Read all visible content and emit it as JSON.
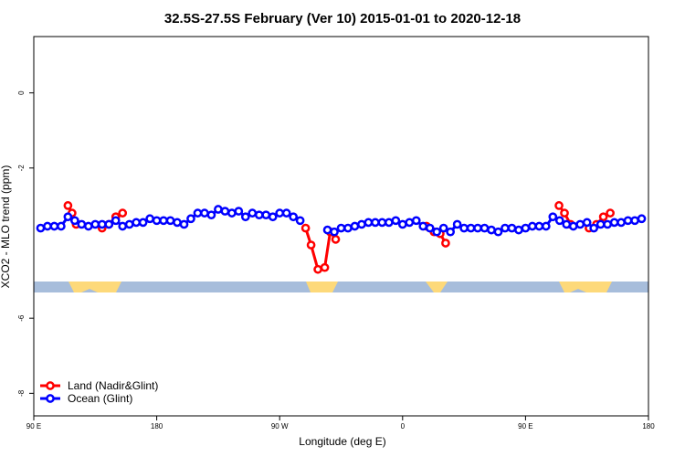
{
  "chart_data": {
    "type": "line",
    "title": "32.5S-27.5S February (Ver 10)   2015-01-01 to 2020-12-18",
    "x_label": "Longitude (deg E)",
    "y_label": "XCO2 - MLO trend (ppm)",
    "xlim": [
      90,
      540
    ],
    "ylim": [
      -8.6,
      1.5
    ],
    "xticks": [
      {
        "value": 90,
        "label": "90 E"
      },
      {
        "value": 180,
        "label": "180"
      },
      {
        "value": 270,
        "label": "90 W"
      },
      {
        "value": 360,
        "label": "0"
      },
      {
        "value": 450,
        "label": "90 E"
      },
      {
        "value": 540,
        "label": "180"
      }
    ],
    "yticks": [
      0,
      -2,
      -6,
      -8
    ],
    "legend": "bottom-left",
    "series": [
      {
        "name": "Land (Nadir&Glint)",
        "color": "#ff0000",
        "x": [
          115,
          118,
          121,
          130,
          140,
          145,
          150,
          155,
          200,
          289,
          293,
          298,
          303,
          307,
          311,
          340,
          377.5,
          383,
          387.5,
          391.5,
          430,
          474.5,
          478.5,
          483,
          490,
          496.5,
          502,
          507,
          512
        ],
        "values": [
          -3.0,
          -3.2,
          -3.5,
          null,
          -3.6,
          -3.5,
          -3.3,
          -3.2,
          null,
          -3.6,
          -4.05,
          -4.7,
          -4.65,
          -3.7,
          -3.9,
          null,
          -3.55,
          -3.7,
          -3.75,
          -4.0,
          null,
          -3.0,
          -3.2,
          -3.5,
          null,
          -3.6,
          -3.5,
          -3.3,
          -3.2
        ]
      },
      {
        "name": "Ocean (Glint)",
        "color": "#0000ff",
        "x": [
          95,
          100,
          105,
          110,
          115,
          120,
          125,
          130,
          135,
          140,
          145,
          150,
          155,
          160,
          165,
          170,
          175,
          180,
          185,
          190,
          195,
          200,
          205,
          210,
          215,
          220,
          225,
          230,
          235,
          240,
          245,
          250,
          255,
          260,
          265,
          270,
          275,
          280,
          285,
          295,
          305,
          310,
          315,
          320,
          325,
          330,
          335,
          340,
          345,
          350,
          355,
          360,
          365,
          370,
          375,
          380,
          385,
          390,
          395,
          400,
          405,
          410,
          415,
          420,
          425,
          430,
          435,
          440,
          445,
          450,
          455,
          460,
          465,
          470,
          475,
          480,
          485,
          490,
          495,
          500,
          505,
          510,
          515,
          520,
          525,
          530,
          535
        ],
        "values": [
          -3.6,
          -3.55,
          -3.55,
          -3.55,
          -3.3,
          -3.4,
          -3.5,
          -3.55,
          -3.5,
          -3.5,
          -3.5,
          -3.4,
          -3.55,
          -3.5,
          -3.45,
          -3.45,
          -3.35,
          -3.4,
          -3.4,
          -3.4,
          -3.45,
          -3.5,
          -3.35,
          -3.2,
          -3.2,
          -3.25,
          -3.1,
          -3.15,
          -3.2,
          -3.15,
          -3.3,
          -3.2,
          -3.25,
          -3.25,
          -3.3,
          -3.2,
          -3.2,
          -3.3,
          -3.4,
          null,
          -3.65,
          -3.7,
          -3.6,
          -3.6,
          -3.55,
          -3.5,
          -3.45,
          -3.45,
          -3.45,
          -3.45,
          -3.4,
          -3.5,
          -3.45,
          -3.4,
          -3.55,
          -3.6,
          -3.7,
          -3.6,
          -3.7,
          -3.5,
          -3.6,
          -3.6,
          -3.6,
          -3.6,
          -3.65,
          -3.7,
          -3.6,
          -3.6,
          -3.65,
          -3.6,
          -3.55,
          -3.55,
          -3.55,
          -3.3,
          -3.4,
          -3.5,
          -3.55,
          -3.5,
          -3.45,
          -3.6,
          -3.5,
          -3.5,
          -3.45,
          -3.45,
          -3.4,
          -3.4,
          -3.35
        ]
      }
    ]
  }
}
